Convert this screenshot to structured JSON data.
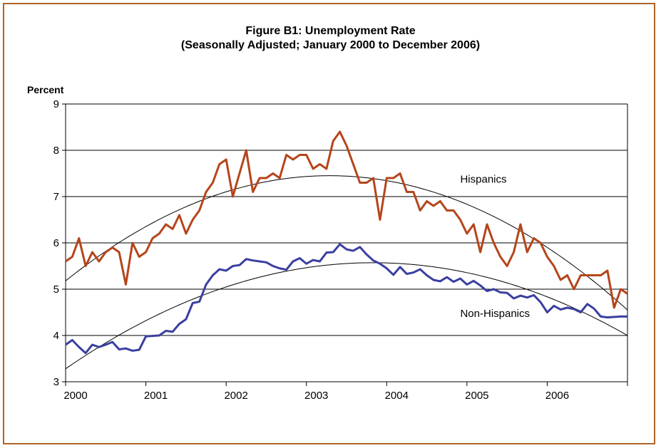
{
  "chart_data": {
    "type": "line",
    "title": "Figure B1: Unemployment Rate",
    "subtitle": "(Seasonally Adjusted; January 2000 to December 2006)",
    "ylabel": "Percent",
    "xlabel": "",
    "ylim": [
      3,
      9
    ],
    "yticks": [
      3,
      4,
      5,
      6,
      7,
      8,
      9
    ],
    "xticks": [
      "2000",
      "2001",
      "2002",
      "2003",
      "2004",
      "2005",
      "2006"
    ],
    "grid": true,
    "x_start": "2000-01",
    "x_end": "2006-12",
    "series": [
      {
        "name": "Hispanics",
        "color": "#b5451b",
        "values": [
          5.6,
          5.7,
          6.1,
          5.5,
          5.8,
          5.6,
          5.8,
          5.9,
          5.8,
          5.1,
          6.0,
          5.7,
          5.8,
          6.1,
          6.2,
          6.4,
          6.3,
          6.6,
          6.2,
          6.5,
          6.7,
          7.1,
          7.3,
          7.7,
          7.8,
          7.0,
          7.5,
          8.0,
          7.1,
          7.4,
          7.4,
          7.5,
          7.4,
          7.9,
          7.8,
          7.9,
          7.9,
          7.6,
          7.7,
          7.6,
          8.2,
          8.4,
          8.1,
          7.7,
          7.3,
          7.3,
          7.4,
          6.5,
          7.4,
          7.4,
          7.5,
          7.1,
          7.1,
          6.7,
          6.9,
          6.8,
          6.9,
          6.7,
          6.7,
          6.5,
          6.2,
          6.4,
          5.8,
          6.4,
          6.0,
          5.7,
          5.5,
          5.8,
          6.4,
          5.8,
          6.1,
          6.0,
          5.7,
          5.5,
          5.2,
          5.3,
          5.0,
          5.3,
          5.3,
          5.3,
          5.3,
          5.4,
          4.6,
          5.0,
          4.9
        ]
      },
      {
        "name": "Non-Hispanics",
        "color": "#3a3fa0",
        "values": [
          3.8,
          3.9,
          3.75,
          3.62,
          3.8,
          3.75,
          3.8,
          3.86,
          3.7,
          3.72,
          3.67,
          3.69,
          3.98,
          3.99,
          4.0,
          4.1,
          4.08,
          4.25,
          4.35,
          4.7,
          4.73,
          5.1,
          5.3,
          5.43,
          5.4,
          5.5,
          5.52,
          5.65,
          5.62,
          5.6,
          5.58,
          5.5,
          5.45,
          5.42,
          5.6,
          5.67,
          5.55,
          5.63,
          5.6,
          5.79,
          5.8,
          5.97,
          5.86,
          5.83,
          5.91,
          5.75,
          5.62,
          5.55,
          5.45,
          5.31,
          5.48,
          5.33,
          5.36,
          5.43,
          5.3,
          5.2,
          5.17,
          5.26,
          5.16,
          5.23,
          5.1,
          5.18,
          5.08,
          4.96,
          5.0,
          4.93,
          4.92,
          4.8,
          4.86,
          4.82,
          4.87,
          4.72,
          4.5,
          4.64,
          4.56,
          4.6,
          4.57,
          4.5,
          4.68,
          4.58,
          4.41,
          4.39,
          4.4,
          4.41,
          4.41
        ]
      }
    ],
    "trendlines": [
      {
        "for": "Hispanics",
        "color": "#000000",
        "points": [
          [
            0,
            5.18
          ],
          [
            38.5,
            7.45
          ],
          [
            84,
            4.55
          ]
        ]
      },
      {
        "for": "Non-Hispanics",
        "color": "#000000",
        "points": [
          [
            0,
            3.28
          ],
          [
            45,
            5.57
          ],
          [
            84,
            4.0
          ]
        ]
      }
    ],
    "annotations": [
      {
        "text": "Hispanics",
        "at": [
          59,
          7.3
        ]
      },
      {
        "text": "Non-Hispanics",
        "at": [
          59,
          4.4
        ]
      }
    ]
  }
}
